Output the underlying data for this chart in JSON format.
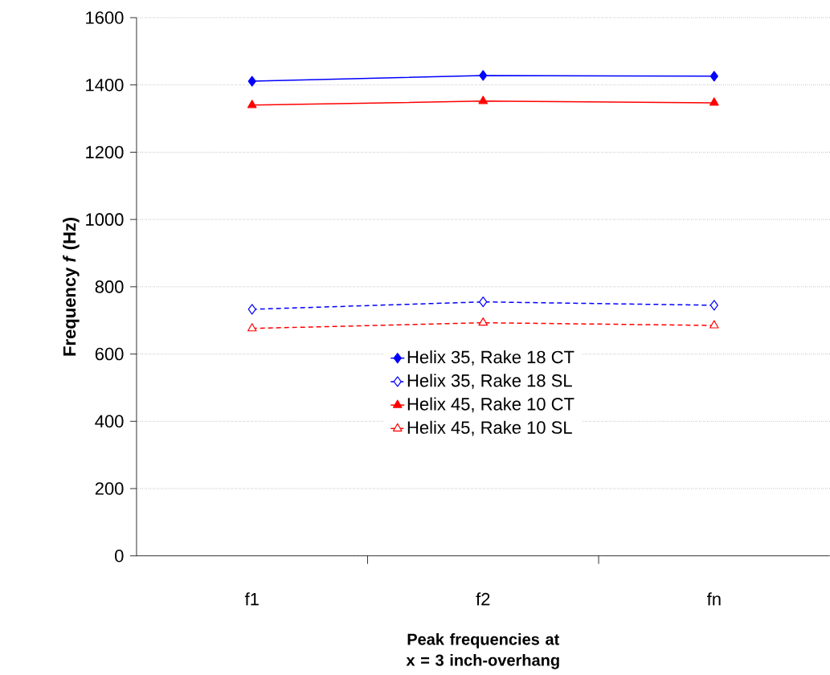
{
  "chart_data": {
    "type": "line",
    "xlabel": "Peak frequencies at x = 3 inch-overhang",
    "ylabel": "Frequency *f* (Hz)",
    "categories": [
      "f1",
      "f2",
      "fn"
    ],
    "series": [
      {
        "name": "Helix 35, Rake 18 CT",
        "color": "#0000ff",
        "marker": "diamond",
        "line_style": "solid",
        "values": [
          1411,
          1428,
          1426
        ]
      },
      {
        "name": "Helix 35, Rake 18 SL",
        "color": "#0000ff",
        "marker": "diamond",
        "line_style": "dashed",
        "values": [
          733,
          755,
          745
        ]
      },
      {
        "name": "Helix 45, Rake 10 CT",
        "color": "#ff0000",
        "marker": "triangle",
        "line_style": "solid",
        "values": [
          1340,
          1352,
          1347
        ]
      },
      {
        "name": "Helix 45, Rake 10 SL",
        "color": "#ff0000",
        "marker": "triangle",
        "line_style": "dashed",
        "values": [
          676,
          693,
          685
        ]
      }
    ],
    "ylim": [
      0,
      1600
    ],
    "yticks": [
      0,
      200,
      400,
      600,
      800,
      1000,
      1200,
      1400,
      1600
    ],
    "grid": "y",
    "legend": "bottom"
  }
}
